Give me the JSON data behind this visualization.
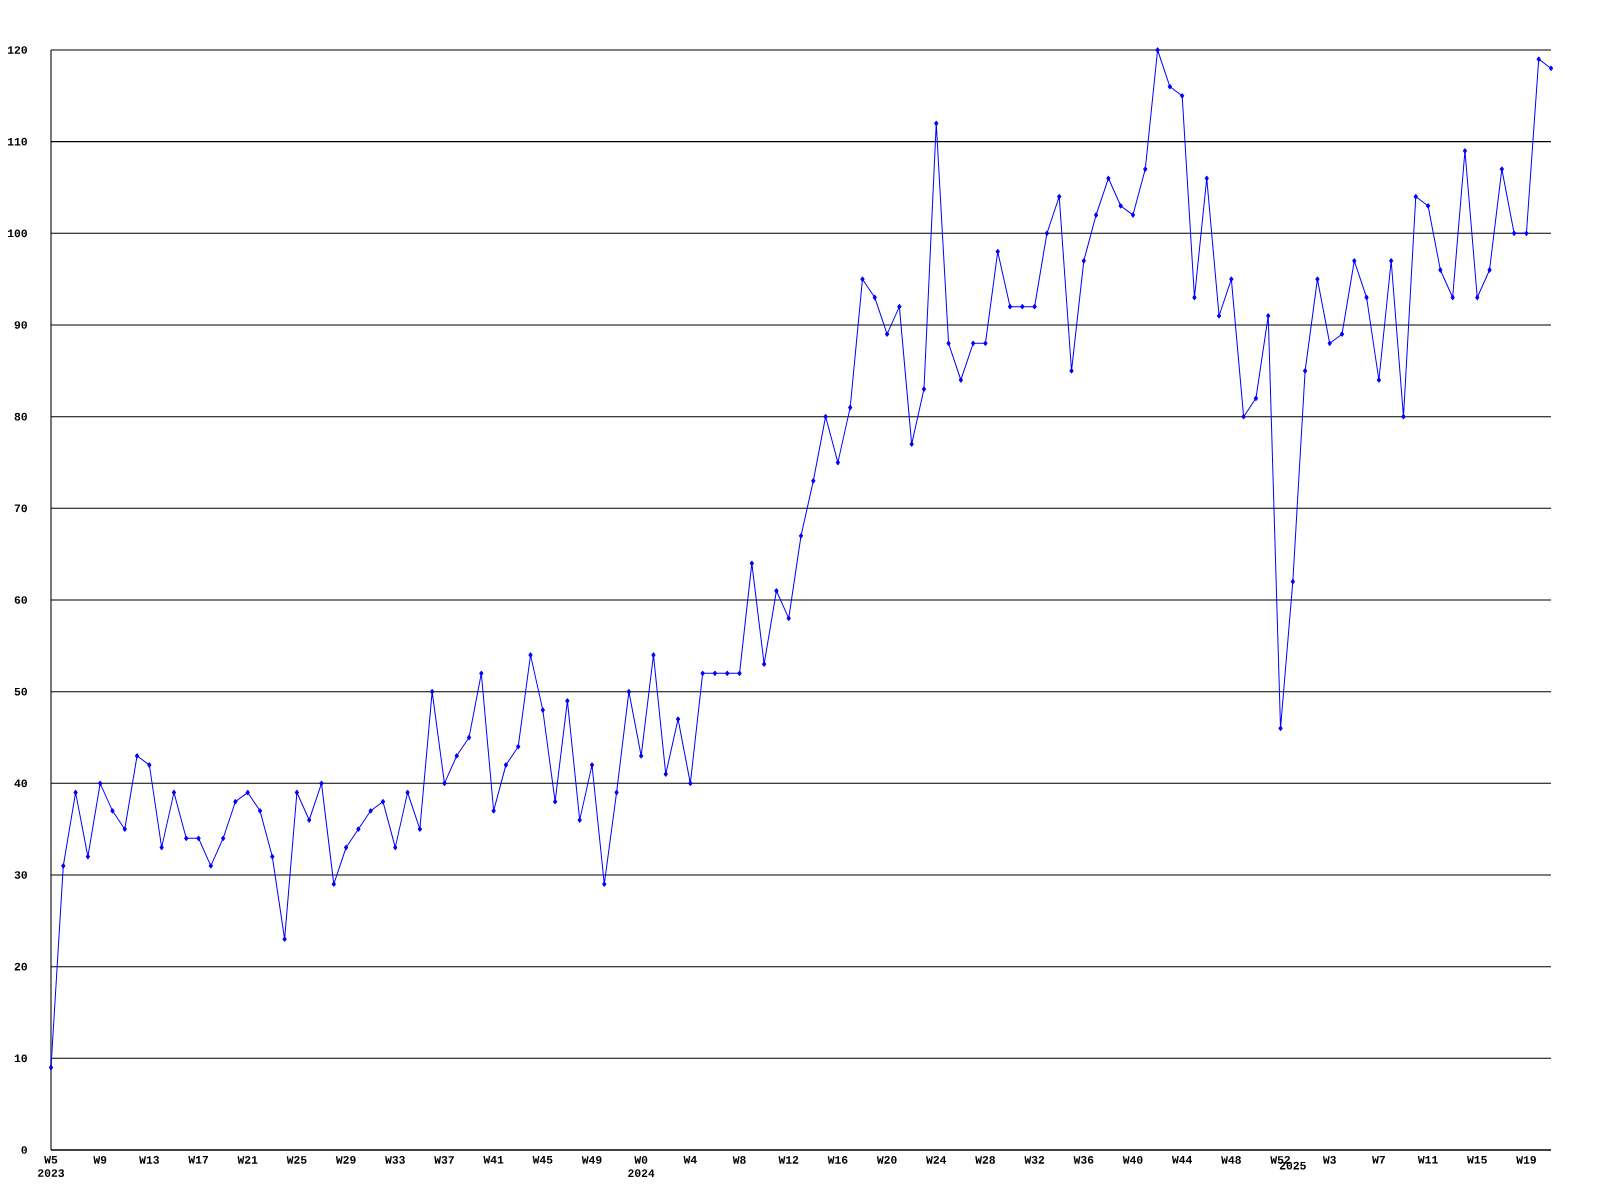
{
  "chart_data": {
    "type": "line",
    "categories": [
      "W5\n2023",
      null,
      null,
      null,
      "W9",
      null,
      null,
      null,
      "W13",
      null,
      null,
      null,
      "W17",
      null,
      null,
      null,
      "W21",
      null,
      null,
      null,
      "W25",
      null,
      null,
      null,
      "W29",
      null,
      null,
      null,
      "W33",
      null,
      null,
      null,
      "W37",
      null,
      null,
      null,
      "W41",
      null,
      null,
      null,
      "W45",
      null,
      null,
      null,
      "W49",
      null,
      null,
      null,
      "W0\n2024",
      null,
      null,
      null,
      "W4",
      null,
      null,
      null,
      "W8",
      null,
      null,
      null,
      "W12",
      null,
      null,
      null,
      "W16",
      null,
      null,
      null,
      "W20",
      null,
      null,
      null,
      "W24",
      null,
      null,
      null,
      "W28",
      null,
      null,
      null,
      "W32",
      null,
      null,
      null,
      "W36",
      null,
      null,
      null,
      "W40",
      null,
      null,
      null,
      "W44",
      null,
      null,
      null,
      "W48",
      null,
      null,
      null,
      "W52",
      "\n2025",
      null,
      null,
      "W3",
      null,
      null,
      null,
      "W7",
      null,
      null,
      null,
      "W11",
      null,
      null,
      null,
      "W15",
      null,
      null,
      null,
      "W19",
      null,
      null
    ],
    "series": [
      {
        "color": "#0000ff",
        "values": [
          9,
          31,
          39,
          32,
          40,
          37,
          35,
          43,
          42,
          33,
          39,
          34,
          34,
          31,
          34,
          38,
          39,
          37,
          32,
          23,
          39,
          36,
          40,
          29,
          33,
          35,
          37,
          38,
          33,
          39,
          35,
          50,
          40,
          43,
          45,
          52,
          37,
          42,
          44,
          54,
          48,
          38,
          49,
          36,
          42,
          29,
          39,
          50,
          43,
          54,
          41,
          47,
          40,
          52,
          52,
          52,
          52,
          64,
          53,
          61,
          58,
          67,
          73,
          80,
          75,
          81,
          95,
          93,
          89,
          92,
          77,
          83,
          112,
          88,
          84,
          88,
          88,
          98,
          92,
          92,
          92,
          100,
          104,
          85,
          97,
          102,
          106,
          103,
          102,
          107,
          120,
          116,
          115,
          93,
          106,
          91,
          95,
          80,
          82,
          91,
          46,
          62,
          85,
          95,
          88,
          89,
          97,
          93,
          84,
          97,
          80,
          104,
          103,
          96,
          93,
          109,
          93,
          96,
          107,
          100,
          100,
          119,
          118
        ]
      }
    ],
    "ylim": [
      0,
      120
    ],
    "yticks": [
      0,
      10,
      20,
      30,
      40,
      50,
      60,
      70,
      80,
      90,
      100,
      110,
      120
    ],
    "grid": "y",
    "marker": "diamond",
    "line_style": "solid"
  }
}
